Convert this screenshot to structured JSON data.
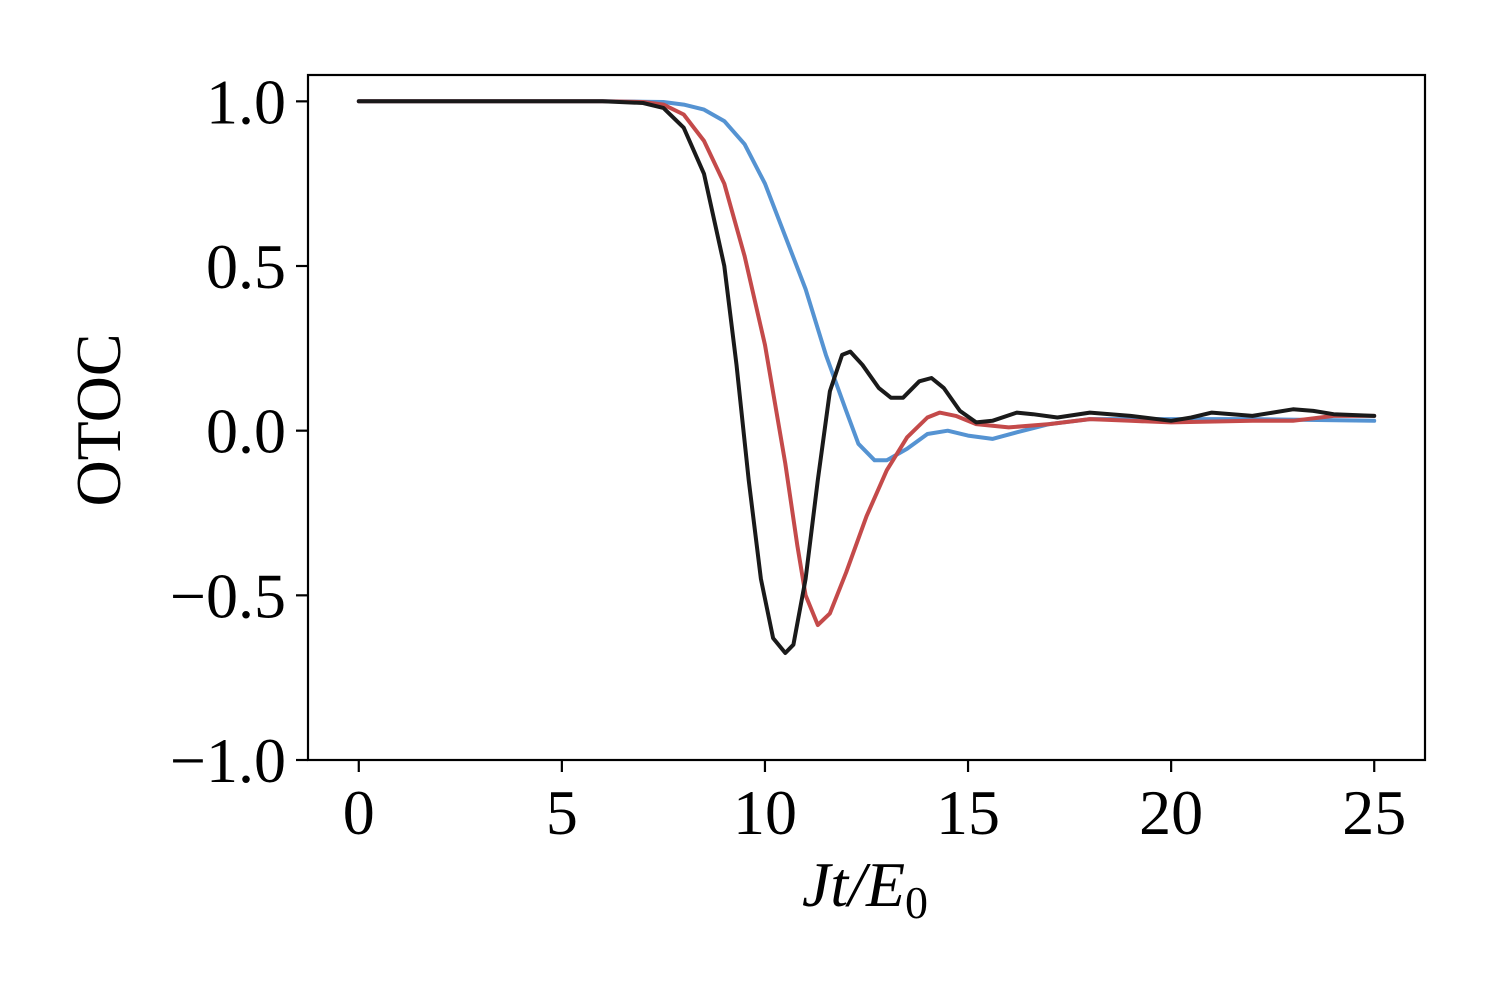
{
  "chart_data": {
    "type": "line",
    "title": "",
    "xlabel": {
      "main": "Jt/E",
      "sub": "0"
    },
    "ylabel": "OTOC",
    "xlim": [
      -1.25,
      26.25
    ],
    "ylim": [
      -1.0,
      1.08
    ],
    "xticks": [
      0,
      5,
      10,
      15,
      20,
      25
    ],
    "yticks": [
      -1.0,
      -0.5,
      0.0,
      0.5,
      1.0
    ],
    "xtick_labels": [
      "0",
      "5",
      "10",
      "15",
      "20",
      "25"
    ],
    "ytick_labels": [
      "−1.0",
      "−0.5",
      "0.0",
      "0.5",
      "1.0"
    ],
    "grid": false,
    "series": [
      {
        "color": "#5593d2",
        "points": [
          [
            0,
            1.0
          ],
          [
            6,
            1.0
          ],
          [
            7,
            0.999
          ],
          [
            7.5,
            0.998
          ],
          [
            8,
            0.99
          ],
          [
            8.5,
            0.975
          ],
          [
            9,
            0.94
          ],
          [
            9.5,
            0.87
          ],
          [
            10,
            0.75
          ],
          [
            10.5,
            0.59
          ],
          [
            11,
            0.43
          ],
          [
            11.5,
            0.23
          ],
          [
            12,
            0.06
          ],
          [
            12.3,
            -0.04
          ],
          [
            12.7,
            -0.09
          ],
          [
            13,
            -0.09
          ],
          [
            13.5,
            -0.055
          ],
          [
            14,
            -0.01
          ],
          [
            14.5,
            0.0
          ],
          [
            15,
            -0.015
          ],
          [
            15.6,
            -0.025
          ],
          [
            16.2,
            -0.005
          ],
          [
            17,
            0.02
          ],
          [
            18,
            0.035
          ],
          [
            20,
            0.035
          ],
          [
            22,
            0.035
          ],
          [
            25,
            0.03
          ]
        ]
      },
      {
        "color": "#c44a4a",
        "points": [
          [
            0,
            1.0
          ],
          [
            6,
            1.0
          ],
          [
            7,
            0.998
          ],
          [
            7.5,
            0.99
          ],
          [
            8,
            0.96
          ],
          [
            8.5,
            0.88
          ],
          [
            9,
            0.75
          ],
          [
            9.5,
            0.53
          ],
          [
            10,
            0.26
          ],
          [
            10.5,
            -0.1
          ],
          [
            10.8,
            -0.35
          ],
          [
            11,
            -0.5
          ],
          [
            11.3,
            -0.59
          ],
          [
            11.6,
            -0.555
          ],
          [
            12,
            -0.43
          ],
          [
            12.5,
            -0.26
          ],
          [
            13,
            -0.12
          ],
          [
            13.5,
            -0.02
          ],
          [
            14,
            0.04
          ],
          [
            14.3,
            0.055
          ],
          [
            14.7,
            0.045
          ],
          [
            15.2,
            0.02
          ],
          [
            16,
            0.01
          ],
          [
            17,
            0.02
          ],
          [
            18,
            0.035
          ],
          [
            19,
            0.03
          ],
          [
            20,
            0.025
          ],
          [
            22,
            0.03
          ],
          [
            23,
            0.03
          ],
          [
            24,
            0.045
          ],
          [
            25,
            0.045
          ]
        ]
      },
      {
        "color": "#1a1a1a",
        "points": [
          [
            0,
            1.0
          ],
          [
            6,
            1.0
          ],
          [
            7,
            0.995
          ],
          [
            7.5,
            0.98
          ],
          [
            8,
            0.92
          ],
          [
            8.5,
            0.78
          ],
          [
            9,
            0.5
          ],
          [
            9.3,
            0.2
          ],
          [
            9.6,
            -0.15
          ],
          [
            9.9,
            -0.45
          ],
          [
            10.2,
            -0.63
          ],
          [
            10.5,
            -0.675
          ],
          [
            10.7,
            -0.65
          ],
          [
            11,
            -0.45
          ],
          [
            11.3,
            -0.15
          ],
          [
            11.6,
            0.12
          ],
          [
            11.9,
            0.23
          ],
          [
            12.1,
            0.24
          ],
          [
            12.4,
            0.2
          ],
          [
            12.8,
            0.13
          ],
          [
            13.1,
            0.1
          ],
          [
            13.4,
            0.1
          ],
          [
            13.8,
            0.15
          ],
          [
            14.1,
            0.16
          ],
          [
            14.4,
            0.13
          ],
          [
            14.8,
            0.06
          ],
          [
            15.2,
            0.025
          ],
          [
            15.6,
            0.03
          ],
          [
            16.2,
            0.055
          ],
          [
            16.6,
            0.05
          ],
          [
            17.2,
            0.04
          ],
          [
            18,
            0.055
          ],
          [
            19,
            0.045
          ],
          [
            20,
            0.03
          ],
          [
            20.5,
            0.04
          ],
          [
            21,
            0.055
          ],
          [
            21.5,
            0.05
          ],
          [
            22,
            0.045
          ],
          [
            22.5,
            0.055
          ],
          [
            23,
            0.065
          ],
          [
            23.5,
            0.06
          ],
          [
            24,
            0.05
          ],
          [
            25,
            0.045
          ]
        ]
      }
    ]
  }
}
